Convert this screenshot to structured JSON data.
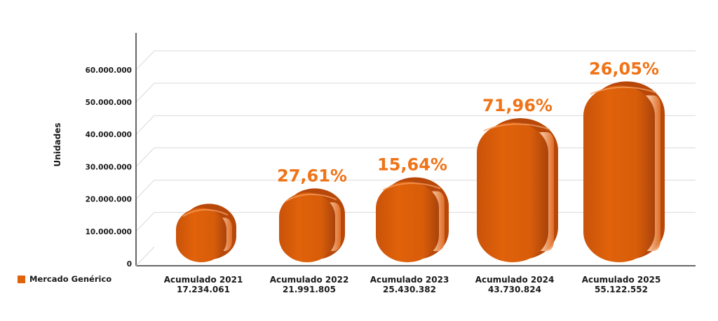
{
  "chart_data": {
    "type": "bar",
    "ylabel": "Unidades",
    "xlabel": "",
    "ylim": [
      0,
      65000000
    ],
    "yticks": [
      "0",
      "10.000.000",
      "20.000.000",
      "30.000.000",
      "40.000.000",
      "50.000.000",
      "60.000.000"
    ],
    "ytick_values": [
      0,
      10000000,
      20000000,
      30000000,
      40000000,
      50000000,
      60000000
    ],
    "categories": [
      "Acumulado 2021",
      "Acumulado 2022",
      "Acumulado 2023",
      "Acumulado 2024",
      "Acumulado 2025"
    ],
    "value_labels": [
      "17.234.061",
      "21.991.805",
      "25.430.382",
      "43.730.824",
      "55.122.552"
    ],
    "series": [
      {
        "name": "Mercado Genérico",
        "values": [
          17234061,
          21991805,
          25430382,
          43730824,
          55122552
        ]
      }
    ],
    "growth_labels": [
      "",
      "27,61%",
      "15,64%",
      "71,96%",
      "26,05%"
    ],
    "grid": true,
    "legend_position": "bottom-left",
    "colors": {
      "bar": "#e0620a",
      "bar_dark": "#b8480a",
      "bar_light": "#f08a3a",
      "growth_text": "#f07317",
      "axis": "#333333",
      "grid": "#d9d9d9"
    }
  },
  "legend": {
    "label": "Mercado Genérico"
  }
}
